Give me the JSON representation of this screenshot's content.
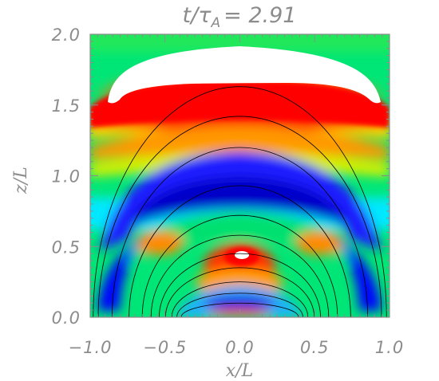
{
  "chart_data": {
    "type": "heatmap",
    "title": "t/τA= 2.91",
    "title_parts": {
      "main": "t/τ",
      "subscript": "A",
      "value": "= 2.91"
    },
    "xlabel": "x/L",
    "ylabel": "z/L",
    "xlim": [
      -1.0,
      1.0
    ],
    "ylim": [
      0.0,
      2.0
    ],
    "x_ticks": [
      "−1.0",
      "−0.5",
      "0.0",
      "0.5",
      "1.0"
    ],
    "x_tick_values": [
      -1.0,
      -0.5,
      0.0,
      0.5,
      1.0
    ],
    "y_ticks": [
      "0.0",
      "0.5",
      "1.0",
      "1.5",
      "2.0"
    ],
    "y_tick_values": [
      0.0,
      0.5,
      1.0,
      1.5,
      2.0
    ],
    "colormap": [
      "#0000ff",
      "#00e5ff",
      "#00e676",
      "#ffff00",
      "#ff0000",
      "#ffffff"
    ],
    "background_color": "#00e676",
    "features": [
      {
        "name": "white saturated band",
        "color": "#ffffff",
        "z_range": [
          1.6,
          1.95
        ]
      },
      {
        "name": "red band",
        "color": "#ff0000",
        "z_range": [
          1.35,
          1.7
        ]
      },
      {
        "name": "blue arch",
        "color": "#0000ff",
        "z_range": [
          0.55,
          1.1
        ]
      },
      {
        "name": "central red blob",
        "color": "#ff0000",
        "center": [
          0.0,
          0.45
        ]
      },
      {
        "name": "lower blue arc",
        "color": "#0000ff",
        "center": [
          0.0,
          0.08
        ]
      }
    ],
    "field_line_apex_heights": [
      0.1,
      0.17,
      0.25,
      0.35,
      0.45,
      0.58,
      0.72,
      0.93,
      1.2,
      1.42,
      1.63
    ]
  }
}
